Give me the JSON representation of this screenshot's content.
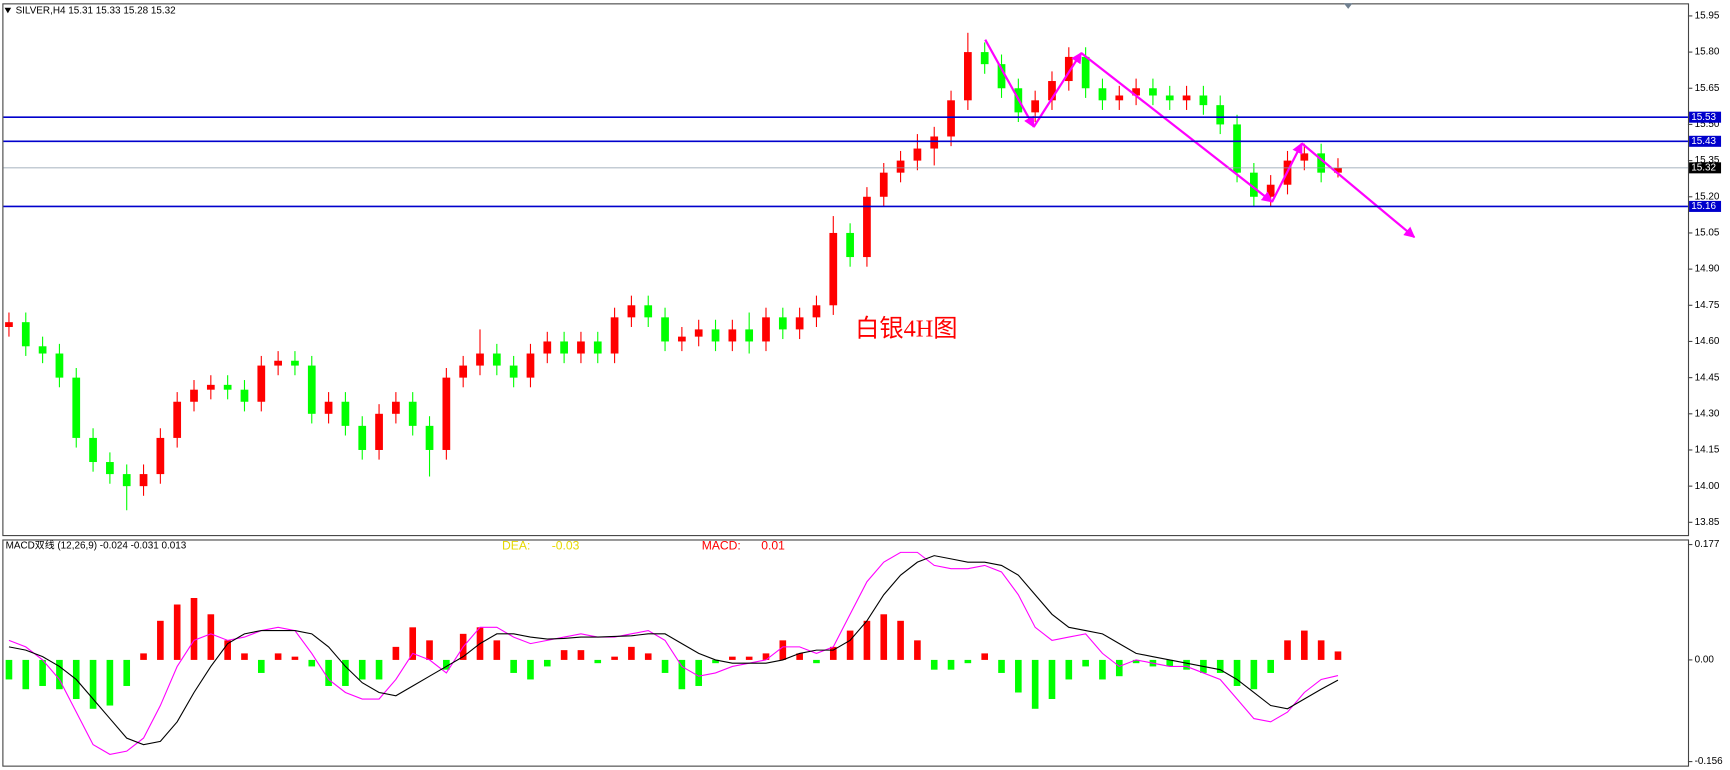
{
  "chart_data": [
    {
      "type": "candlestick",
      "title": "SILVER,H4  15.31 15.33 15.28 15.32",
      "annotation": "白银4H图",
      "annotation_color": "#ff0000",
      "up_color": "#ff0000",
      "down_color": "#00ff00",
      "open": [
        14.66,
        14.68,
        14.58,
        14.55,
        14.45,
        14.2,
        14.1,
        14.05,
        14.0,
        14.05,
        14.2,
        14.35,
        14.4,
        14.42,
        14.4,
        14.35,
        14.5,
        14.52,
        14.5,
        14.3,
        14.35,
        14.25,
        14.15,
        14.3,
        14.35,
        14.25,
        14.15,
        14.45,
        14.5,
        14.55,
        14.5,
        14.45,
        14.55,
        14.6,
        14.55,
        14.6,
        14.55,
        14.7,
        14.75,
        14.7,
        14.6,
        14.62,
        14.65,
        14.6,
        14.65,
        14.6,
        14.7,
        14.65,
        14.7,
        14.75,
        15.05,
        14.95,
        15.2,
        15.3,
        15.35,
        15.4,
        15.45,
        15.6,
        15.8,
        15.75,
        15.65,
        15.55,
        15.6,
        15.68,
        15.78,
        15.65,
        15.6,
        15.62,
        15.65,
        15.62,
        15.6,
        15.62,
        15.58,
        15.5,
        15.3,
        15.2,
        15.25,
        15.35,
        15.38,
        15.3
      ],
      "high": [
        14.72,
        14.72,
        14.62,
        14.59,
        14.49,
        14.24,
        14.14,
        14.09,
        14.09,
        14.24,
        14.39,
        14.44,
        14.46,
        14.46,
        14.44,
        14.54,
        14.56,
        14.56,
        14.54,
        14.39,
        14.39,
        14.29,
        14.34,
        14.39,
        14.39,
        14.29,
        14.49,
        14.54,
        14.65,
        14.59,
        14.54,
        14.59,
        14.64,
        14.64,
        14.64,
        14.64,
        14.74,
        14.79,
        14.79,
        14.74,
        14.66,
        14.69,
        14.69,
        14.69,
        14.72,
        14.74,
        14.74,
        14.74,
        14.79,
        15.12,
        15.09,
        15.24,
        15.34,
        15.39,
        15.46,
        15.49,
        15.64,
        15.88,
        15.84,
        15.79,
        15.69,
        15.64,
        15.72,
        15.82,
        15.82,
        15.69,
        15.66,
        15.69,
        15.69,
        15.66,
        15.66,
        15.66,
        15.62,
        15.54,
        15.34,
        15.29,
        15.39,
        15.42,
        15.42,
        15.36
      ],
      "low": [
        14.62,
        14.54,
        14.51,
        14.41,
        14.16,
        14.06,
        14.01,
        13.9,
        13.96,
        14.01,
        14.16,
        14.31,
        14.36,
        14.36,
        14.31,
        14.31,
        14.46,
        14.46,
        14.26,
        14.26,
        14.21,
        14.11,
        14.11,
        14.26,
        14.21,
        14.04,
        14.11,
        14.41,
        14.46,
        14.46,
        14.41,
        14.41,
        14.51,
        14.51,
        14.51,
        14.51,
        14.51,
        14.66,
        14.66,
        14.56,
        14.56,
        14.58,
        14.56,
        14.56,
        14.55,
        14.56,
        14.61,
        14.61,
        14.66,
        14.71,
        14.91,
        14.91,
        15.16,
        15.26,
        15.31,
        15.33,
        15.41,
        15.56,
        15.71,
        15.61,
        15.51,
        15.51,
        15.56,
        15.64,
        15.61,
        15.56,
        15.56,
        15.58,
        15.58,
        15.56,
        15.56,
        15.54,
        15.46,
        15.26,
        15.16,
        15.16,
        15.21,
        15.31,
        15.26,
        15.28
      ],
      "close": [
        14.68,
        14.58,
        14.55,
        14.45,
        14.2,
        14.1,
        14.05,
        14.0,
        14.05,
        14.2,
        14.35,
        14.4,
        14.42,
        14.4,
        14.35,
        14.5,
        14.52,
        14.5,
        14.3,
        14.35,
        14.25,
        14.15,
        14.3,
        14.35,
        14.25,
        14.15,
        14.45,
        14.5,
        14.55,
        14.5,
        14.45,
        14.55,
        14.6,
        14.55,
        14.6,
        14.55,
        14.7,
        14.75,
        14.7,
        14.6,
        14.62,
        14.65,
        14.6,
        14.65,
        14.6,
        14.7,
        14.65,
        14.7,
        14.75,
        15.05,
        14.95,
        15.2,
        15.3,
        15.35,
        15.4,
        15.45,
        15.6,
        15.8,
        15.75,
        15.65,
        15.55,
        15.6,
        15.68,
        15.78,
        15.65,
        15.6,
        15.62,
        15.65,
        15.62,
        15.6,
        15.62,
        15.58,
        15.5,
        15.3,
        15.2,
        15.25,
        15.35,
        15.38,
        15.3,
        15.32
      ],
      "ylim": [
        13.795,
        16.0
      ],
      "yticks": [
        15.95,
        {
          "value": 15.8,
          "label": "15.80"
        },
        15.65,
        {
          "value": 15.5,
          "label": "15.50"
        },
        15.35,
        {
          "value": 15.2,
          "label": "15.20"
        },
        15.05,
        {
          "value": 14.9,
          "label": "14.90"
        },
        14.75,
        {
          "value": 14.6,
          "label": "14.60"
        },
        14.45,
        {
          "value": 14.3,
          "label": "14.30"
        },
        14.15,
        {
          "value": 14.0,
          "label": "14.00"
        },
        13.85
      ],
      "levels": [
        15.53,
        15.43,
        15.16
      ],
      "level_color": "#0000cc",
      "current_price": 15.32,
      "current_color": "#000000"
    },
    {
      "type": "macd",
      "title": "MACD双线 (12,26,9) -0.024 -0.031 0.013",
      "legend": [
        {
          "name": "DEA:",
          "value": -0.03,
          "color": "#e6d800"
        },
        {
          "name": "MACD:",
          "value": 0.01,
          "color": "#ff0000"
        }
      ],
      "histogram": {
        "up_color": "#ff0000",
        "down_color": "#00ff00",
        "values": [
          -0.03,
          -0.045,
          -0.04,
          -0.045,
          -0.06,
          -0.075,
          -0.07,
          -0.04,
          0.01,
          0.06,
          0.085,
          0.095,
          0.07,
          0.03,
          0.01,
          -0.02,
          0.01,
          0.005,
          -0.01,
          -0.04,
          -0.04,
          -0.03,
          -0.03,
          0.02,
          0.05,
          0.03,
          -0.015,
          0.04,
          0.05,
          0.03,
          -0.02,
          -0.03,
          -0.01,
          0.015,
          0.015,
          -0.005,
          0.005,
          0.02,
          0.01,
          -0.02,
          -0.045,
          -0.04,
          -0.005,
          0.005,
          0.005,
          0.01,
          0.03,
          0.01,
          -0.005,
          0.02,
          0.045,
          0.06,
          0.07,
          0.06,
          0.03,
          -0.015,
          -0.015,
          -0.005,
          0.01,
          -0.02,
          -0.05,
          -0.075,
          -0.06,
          -0.03,
          -0.01,
          -0.03,
          -0.025,
          -0.005,
          -0.01,
          -0.01,
          -0.015,
          -0.02,
          -0.02,
          -0.04,
          -0.045,
          -0.02,
          0.03,
          0.045,
          0.03,
          0.013
        ]
      },
      "lines": [
        {
          "color": "#ff00ff",
          "values": [
            0.03,
            0.02,
            0.0,
            -0.03,
            -0.08,
            -0.13,
            -0.145,
            -0.14,
            -0.12,
            -0.07,
            -0.01,
            0.03,
            0.04,
            0.03,
            0.035,
            0.045,
            0.05,
            0.045,
            0.01,
            -0.03,
            -0.05,
            -0.06,
            -0.06,
            -0.03,
            0.01,
            0.0,
            -0.02,
            0.02,
            0.05,
            0.05,
            0.035,
            0.025,
            0.03,
            0.035,
            0.04,
            0.035,
            0.035,
            0.04,
            0.045,
            0.03,
            -0.01,
            -0.025,
            -0.02,
            -0.01,
            -0.005,
            0.0,
            0.02,
            0.02,
            0.01,
            0.02,
            0.07,
            0.12,
            0.15,
            0.165,
            0.165,
            0.145,
            0.14,
            0.14,
            0.145,
            0.135,
            0.1,
            0.05,
            0.03,
            0.035,
            0.04,
            0.01,
            -0.01,
            0.0,
            -0.005,
            -0.01,
            -0.01,
            -0.02,
            -0.03,
            -0.06,
            -0.09,
            -0.095,
            -0.08,
            -0.05,
            -0.03,
            -0.024
          ]
        },
        {
          "color": "#000000",
          "values": [
            0.02,
            0.015,
            0.005,
            -0.01,
            -0.03,
            -0.06,
            -0.09,
            -0.12,
            -0.13,
            -0.125,
            -0.095,
            -0.05,
            -0.01,
            0.025,
            0.04,
            0.045,
            0.045,
            0.045,
            0.04,
            0.02,
            -0.01,
            -0.035,
            -0.05,
            -0.055,
            -0.04,
            -0.025,
            -0.01,
            0.005,
            0.025,
            0.04,
            0.04,
            0.035,
            0.032,
            0.033,
            0.035,
            0.035,
            0.036,
            0.037,
            0.04,
            0.04,
            0.025,
            0.01,
            0.0,
            -0.005,
            -0.005,
            -0.005,
            0.0,
            0.01,
            0.015,
            0.015,
            0.03,
            0.06,
            0.1,
            0.13,
            0.15,
            0.16,
            0.155,
            0.15,
            0.15,
            0.145,
            0.13,
            0.1,
            0.07,
            0.05,
            0.045,
            0.04,
            0.025,
            0.01,
            0.005,
            0.0,
            -0.005,
            -0.01,
            -0.015,
            -0.03,
            -0.05,
            -0.07,
            -0.075,
            -0.06,
            -0.045,
            -0.031
          ]
        }
      ],
      "ylim": [
        -0.163,
        0.184
      ],
      "yticks": [
        0.177,
        {
          "value": 0,
          "label": "0.00"
        },
        -0.156
      ]
    }
  ]
}
